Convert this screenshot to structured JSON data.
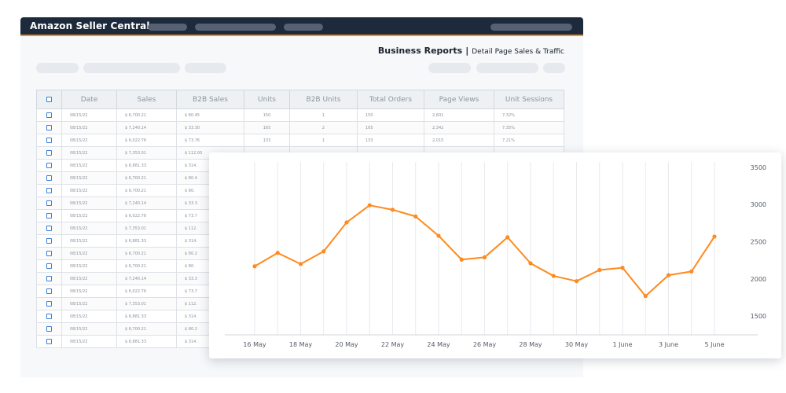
{
  "app": {
    "title": "Amazon Seller Central"
  },
  "report": {
    "title": "Business Reports",
    "separator": "|",
    "subtitle": "Detail Page Sales & Traffic"
  },
  "colors": {
    "topbar": "#1c2a3b",
    "accent": "#ff8a1e",
    "line": "#ff8a1e"
  },
  "table": {
    "columns": [
      "",
      "Date",
      "Sales",
      "B2B Sales",
      "Units",
      "B2B Units",
      "Total Orders",
      "Page Views",
      "Unit Sessions"
    ],
    "rows": [
      [
        "08/15/22",
        "$ 6,700.21",
        "$ 80.45",
        "150",
        "1",
        "150",
        "2,601",
        "7.32%"
      ],
      [
        "08/15/22",
        "$ 7,240.14",
        "$ 33.30",
        "165",
        "2",
        "165",
        "2,342",
        "7.35%"
      ],
      [
        "08/15/22",
        "$ 6,022.76",
        "$ 73.76",
        "133",
        "1",
        "133",
        "2,015",
        "7.21%"
      ],
      [
        "08/15/22",
        "$ 7,353.01",
        "$ 112.00",
        "",
        "",
        "",
        "",
        ""
      ],
      [
        "08/15/22",
        "$ 6,881.33",
        "$ 314.",
        "",
        "",
        "",
        "",
        ""
      ],
      [
        "08/15/22",
        "$ 6,700.21",
        "$ 80.4",
        "",
        "",
        "",
        "",
        ""
      ],
      [
        "08/15/22",
        "$ 6,700.21",
        "$ 80.",
        "",
        "",
        "",
        "",
        ""
      ],
      [
        "08/15/22",
        "$ 7,240.14",
        "$ 33.3",
        "",
        "",
        "",
        "",
        ""
      ],
      [
        "08/15/22",
        "$ 6,022.76",
        "$ 73.7",
        "",
        "",
        "",
        "",
        ""
      ],
      [
        "08/15/22",
        "$ 7,353.01",
        "$ 112.",
        "",
        "",
        "",
        "",
        ""
      ],
      [
        "08/15/22",
        "$ 6,881.33",
        "$ 314.",
        "",
        "",
        "",
        "",
        ""
      ],
      [
        "08/15/22",
        "$ 6,700.21",
        "$ 80.2",
        "",
        "",
        "",
        "",
        ""
      ],
      [
        "08/15/22",
        "$ 6,700.21",
        "$ 80.",
        "",
        "",
        "",
        "",
        ""
      ],
      [
        "08/15/22",
        "$ 7,240.14",
        "$ 33.3",
        "",
        "",
        "",
        "",
        ""
      ],
      [
        "08/15/22",
        "$ 6,022.76",
        "$ 73.7",
        "",
        "",
        "",
        "",
        ""
      ],
      [
        "08/15/22",
        "$ 7,353.01",
        "$ 112.",
        "",
        "",
        "",
        "",
        ""
      ],
      [
        "08/15/22",
        "$ 6,881.33",
        "$ 314.",
        "",
        "",
        "",
        "",
        ""
      ],
      [
        "08/15/22",
        "$ 6,700.21",
        "$ 80.2",
        "",
        "",
        "",
        "",
        ""
      ],
      [
        "08/15/22",
        "$ 6,881.33",
        "$ 314.",
        "",
        "",
        "",
        "",
        ""
      ]
    ]
  },
  "chart_data": {
    "type": "line",
    "x_tick_labels": [
      "16 May",
      "18 May",
      "20 May",
      "22 May",
      "24 May",
      "26 May",
      "28 May",
      "30 May",
      "1 June",
      "3 June",
      "5 June"
    ],
    "y_tick_labels": [
      "3500",
      "3000",
      "2500",
      "2000",
      "1500"
    ],
    "y_tick_values": [
      3500,
      3000,
      2500,
      2000,
      1500
    ],
    "ylim": [
      1100,
      3700
    ],
    "grid": "vertical",
    "series": [
      {
        "color": "#ff8a1e",
        "values": [
          2170,
          2350,
          2200,
          2370,
          2760,
          2990,
          2930,
          2840,
          2580,
          2260,
          2290,
          2560,
          2210,
          2040,
          1970,
          2120,
          2150,
          1770,
          2050,
          2100,
          2570
        ]
      }
    ]
  }
}
